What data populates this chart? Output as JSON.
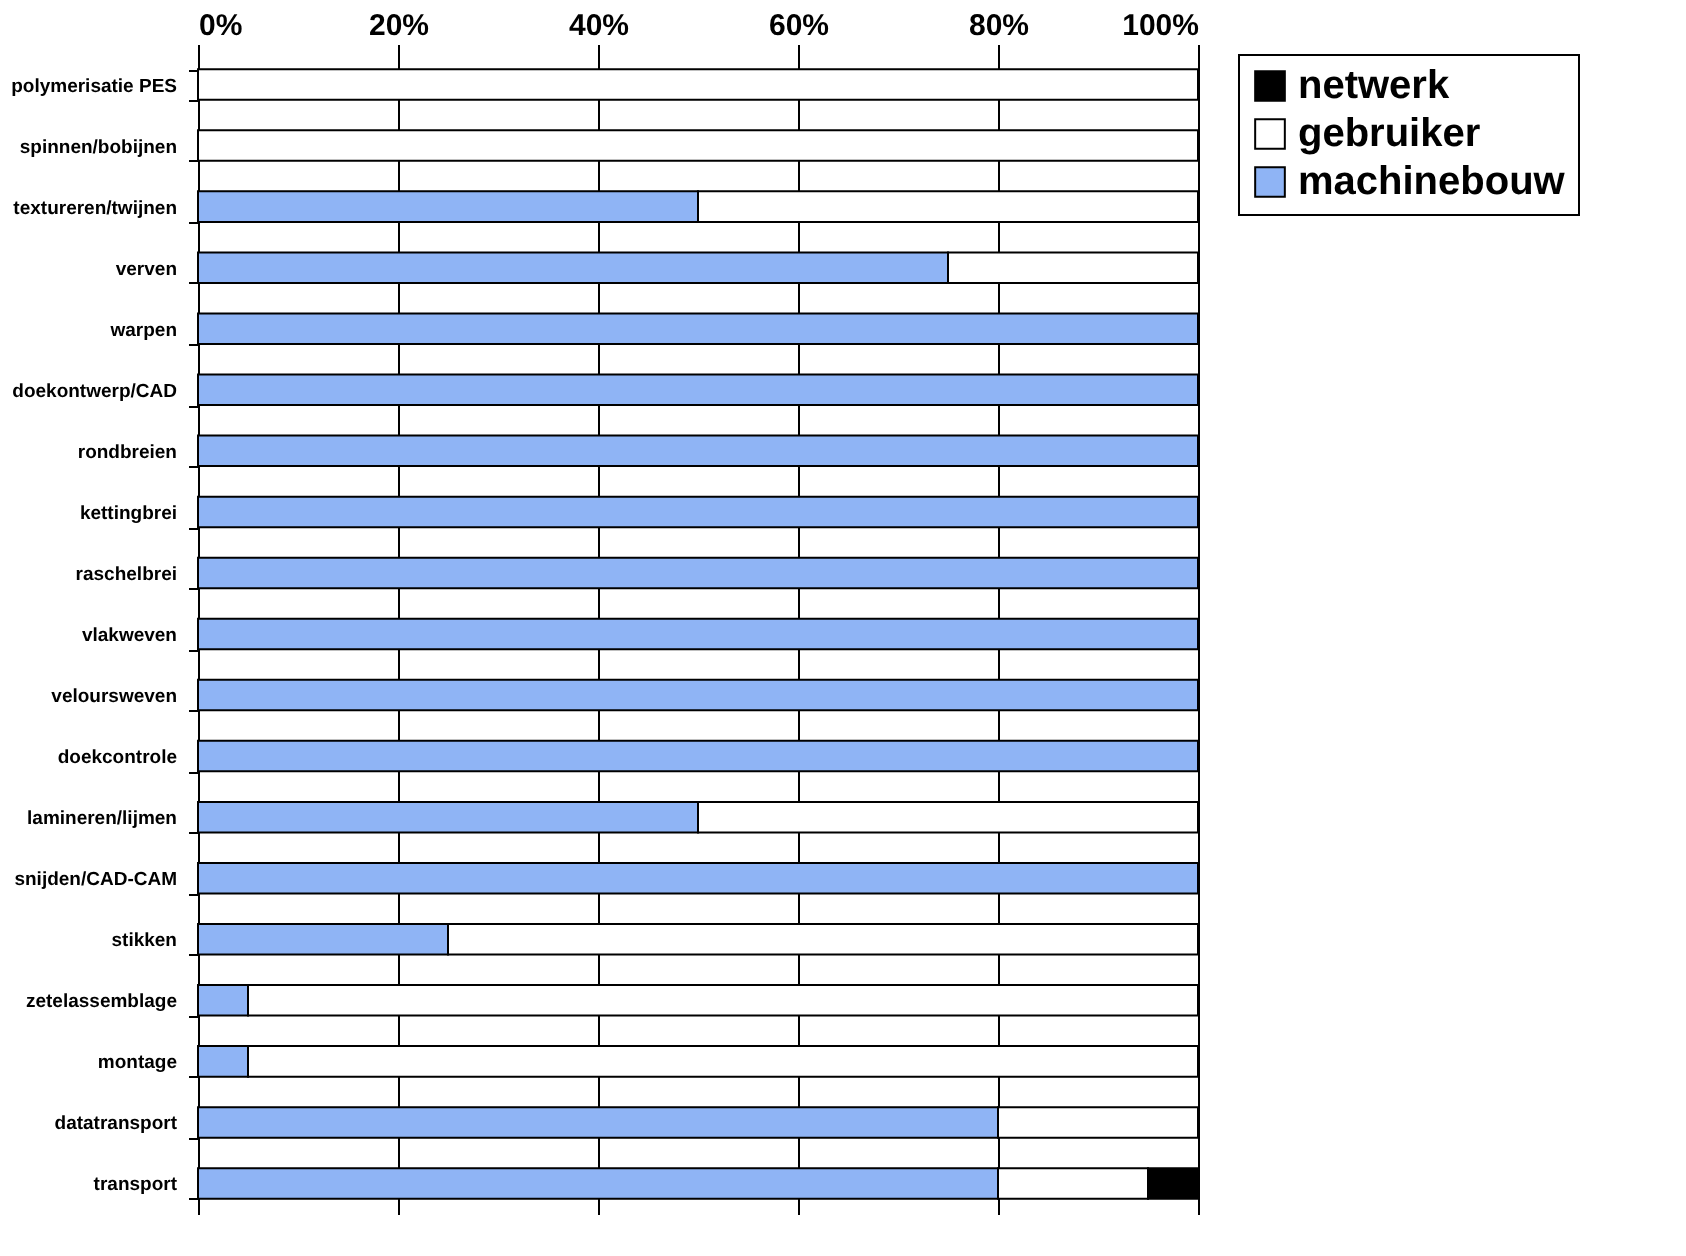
{
  "chart_data": {
    "type": "bar",
    "orientation": "horizontal",
    "stacked": true,
    "categories": [
      "polymerisatie PES",
      "spinnen/bobijnen",
      "textureren/twijnen",
      "verven",
      "warpen",
      "doekontwerp/CAD",
      "rondbreien",
      "kettingbrei",
      "raschelbrei",
      "vlakweven",
      "veloursweven",
      "doekcontrole",
      "lamineren/lijmen",
      "snijden/CAD-CAM",
      "stikken",
      "zetelassemblage",
      "montage",
      "datatransport",
      "transport"
    ],
    "series": [
      {
        "name": "machinebouw",
        "color": "#8fb4f5",
        "values": [
          0,
          0,
          50,
          75,
          100,
          100,
          100,
          100,
          100,
          100,
          100,
          100,
          50,
          100,
          25,
          5,
          5,
          80,
          80
        ]
      },
      {
        "name": "gebruiker",
        "color": "#ffffff",
        "values": [
          100,
          100,
          50,
          25,
          0,
          0,
          0,
          0,
          0,
          0,
          0,
          0,
          50,
          0,
          75,
          95,
          95,
          20,
          15
        ]
      },
      {
        "name": "netwerk",
        "color": "#000000",
        "values": [
          0,
          0,
          0,
          0,
          0,
          0,
          0,
          0,
          0,
          0,
          0,
          0,
          0,
          0,
          0,
          0,
          0,
          0,
          5
        ]
      }
    ],
    "xlim": [
      0,
      100
    ],
    "xticks": [
      {
        "value": 0,
        "label": "0%"
      },
      {
        "value": 20,
        "label": "20%"
      },
      {
        "value": 40,
        "label": "40%"
      },
      {
        "value": 60,
        "label": "60%"
      },
      {
        "value": 80,
        "label": "80%"
      },
      {
        "value": 100,
        "label": "100%"
      }
    ],
    "grid": "x",
    "legend": "right"
  }
}
